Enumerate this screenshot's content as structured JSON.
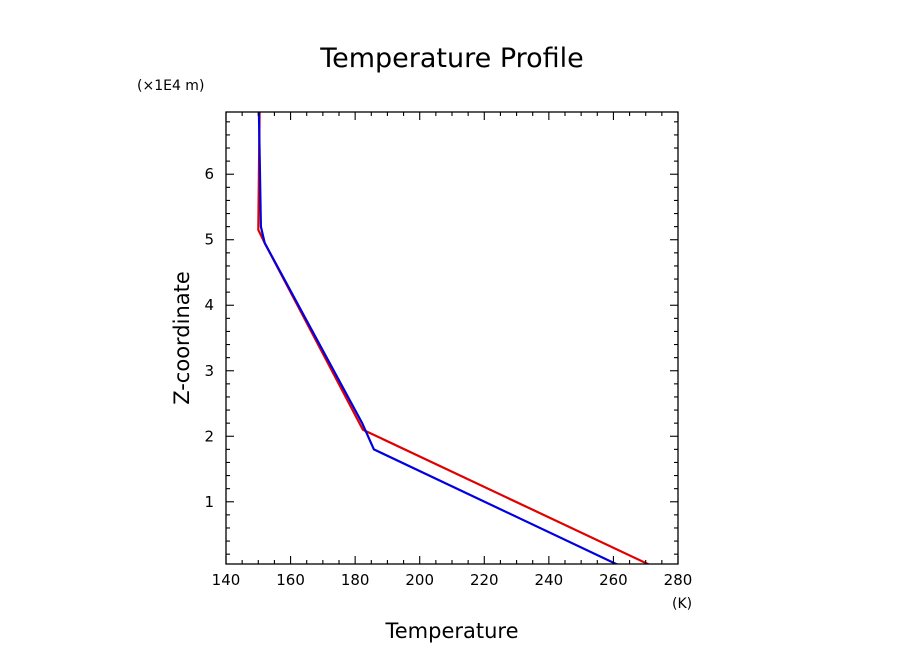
{
  "chart_data": {
    "type": "line",
    "title": "Temperature Profile",
    "xlabel": "Temperature",
    "ylabel": "Z-coordinate",
    "x_unit": "(K)",
    "y_unit": "(×1E4 m)",
    "xlim": [
      140,
      280
    ],
    "ylim": [
      0.05,
      6.95
    ],
    "x_ticks": [
      140,
      160,
      180,
      200,
      220,
      240,
      260,
      280
    ],
    "x_tick_labels": [
      "140",
      "160",
      "180",
      "200",
      "220",
      "240",
      "260",
      "280"
    ],
    "y_ticks": [
      1,
      2,
      3,
      4,
      5,
      6
    ],
    "y_tick_labels": [
      "1",
      "2",
      "3",
      "4",
      "5",
      "6"
    ],
    "grid": false,
    "series": [
      {
        "color": "#e00000",
        "x": [
          272.8,
          182.4,
          152.0,
          150.0,
          150.2,
          150.4
        ],
        "y": [
          0.0,
          2.1,
          4.95,
          5.15,
          6.0,
          6.95
        ]
      },
      {
        "color": "#0000e0",
        "x": [
          263.0,
          185.8,
          182.2,
          152.0,
          150.8,
          150.2
        ],
        "y": [
          0.0,
          1.8,
          2.2,
          4.95,
          5.2,
          6.95
        ]
      }
    ]
  }
}
